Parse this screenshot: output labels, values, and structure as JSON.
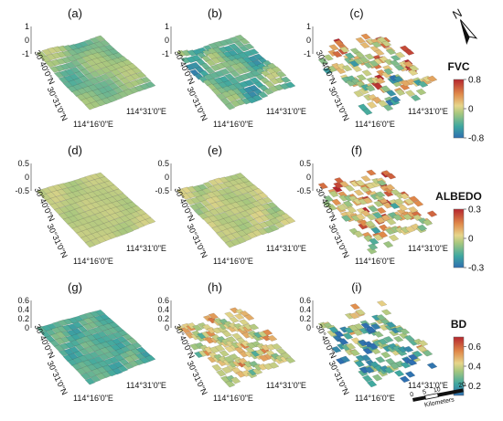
{
  "chart_data": {
    "type": "surface",
    "panels": [
      {
        "label": "(a)",
        "row": 0,
        "col": 0,
        "z_ticks": [
          "1",
          "0",
          "-1"
        ],
        "lat_ticks": [
          "30°40'0\"N",
          "30°31'0\"N"
        ],
        "lon_ticks": [
          "114°16'0\"E",
          "114°31'0\"E"
        ]
      },
      {
        "label": "(b)",
        "row": 0,
        "col": 1,
        "z_ticks": [
          "1",
          "0",
          "-1"
        ],
        "lat_ticks": [
          "30°40'0\"N",
          "30°31'0\"N"
        ],
        "lon_ticks": [
          "114°16'0\"E",
          "114°31'0\"E"
        ]
      },
      {
        "label": "(c)",
        "row": 0,
        "col": 2,
        "z_ticks": [
          "1",
          "0",
          "-1"
        ],
        "lat_ticks": [
          "30°40'0\"N",
          "30°31'0\"N"
        ],
        "lon_ticks": [
          "114°16'0\"E",
          "114°31'0\"E"
        ]
      },
      {
        "label": "(d)",
        "row": 1,
        "col": 0,
        "z_ticks": [
          "0.5",
          "0",
          "-0.5"
        ],
        "lat_ticks": [
          "30°40'0\"N",
          "30°31'0\"N"
        ],
        "lon_ticks": [
          "114°16'0\"E",
          "114°31'0\"E"
        ]
      },
      {
        "label": "(e)",
        "row": 1,
        "col": 1,
        "z_ticks": [
          "0.5",
          "0",
          "-0.5"
        ],
        "lat_ticks": [
          "30°40'0\"N",
          "30°31'0\"N"
        ],
        "lon_ticks": [
          "114°16'0\"E",
          "114°31'0\"E"
        ]
      },
      {
        "label": "(f)",
        "row": 1,
        "col": 2,
        "z_ticks": [
          "0.5",
          "0",
          "-0.5"
        ],
        "lat_ticks": [
          "30°40'0\"N",
          "30°31'0\"N"
        ],
        "lon_ticks": [
          "114°16'0\"E",
          "114°31'0\"E"
        ]
      },
      {
        "label": "(g)",
        "row": 2,
        "col": 0,
        "z_ticks": [
          "0.6",
          "0.4",
          "0.2",
          "0"
        ],
        "lat_ticks": [
          "30°40'0\"N",
          "30°31'0\"N"
        ],
        "lon_ticks": [
          "114°16'0\"E",
          "114°31'0\"E"
        ]
      },
      {
        "label": "(h)",
        "row": 2,
        "col": 1,
        "z_ticks": [
          "0.6",
          "0.4",
          "0.2",
          "0"
        ],
        "lat_ticks": [
          "30°40'0\"N",
          "30°31'0\"N"
        ],
        "lon_ticks": [
          "114°16'0\"E",
          "114°31'0\"E"
        ]
      },
      {
        "label": "(i)",
        "row": 2,
        "col": 2,
        "z_ticks": [
          "0.6",
          "0.4",
          "0.2",
          "0"
        ],
        "lat_ticks": [
          "30°40'0\"N",
          "30°31'0\"N"
        ],
        "lon_ticks": [
          "114°16'0\"E",
          "114°31'0\"E"
        ]
      }
    ],
    "colorbars": [
      {
        "row": 0,
        "title": "FVC",
        "range": [
          -0.8,
          0.8
        ],
        "ticks": [
          "0.8",
          "0",
          "-0.8"
        ]
      },
      {
        "row": 1,
        "title": "ALBEDO",
        "range": [
          -0.3,
          0.3
        ],
        "ticks": [
          "0.3",
          "0",
          "-0.3"
        ]
      },
      {
        "row": 2,
        "title": "BD",
        "range": [
          0.1,
          0.7
        ],
        "ticks": [
          "0.6",
          "0.4",
          "0.2"
        ]
      }
    ],
    "colormap": [
      "#2f6fb0",
      "#3fa8a0",
      "#a7c77e",
      "#e6d58a",
      "#e08a4a",
      "#b5262e"
    ],
    "north_arrow": "N",
    "scale_bar": {
      "ticks": [
        "0",
        "5",
        "10",
        "20"
      ],
      "unit": "Kilometers"
    }
  }
}
